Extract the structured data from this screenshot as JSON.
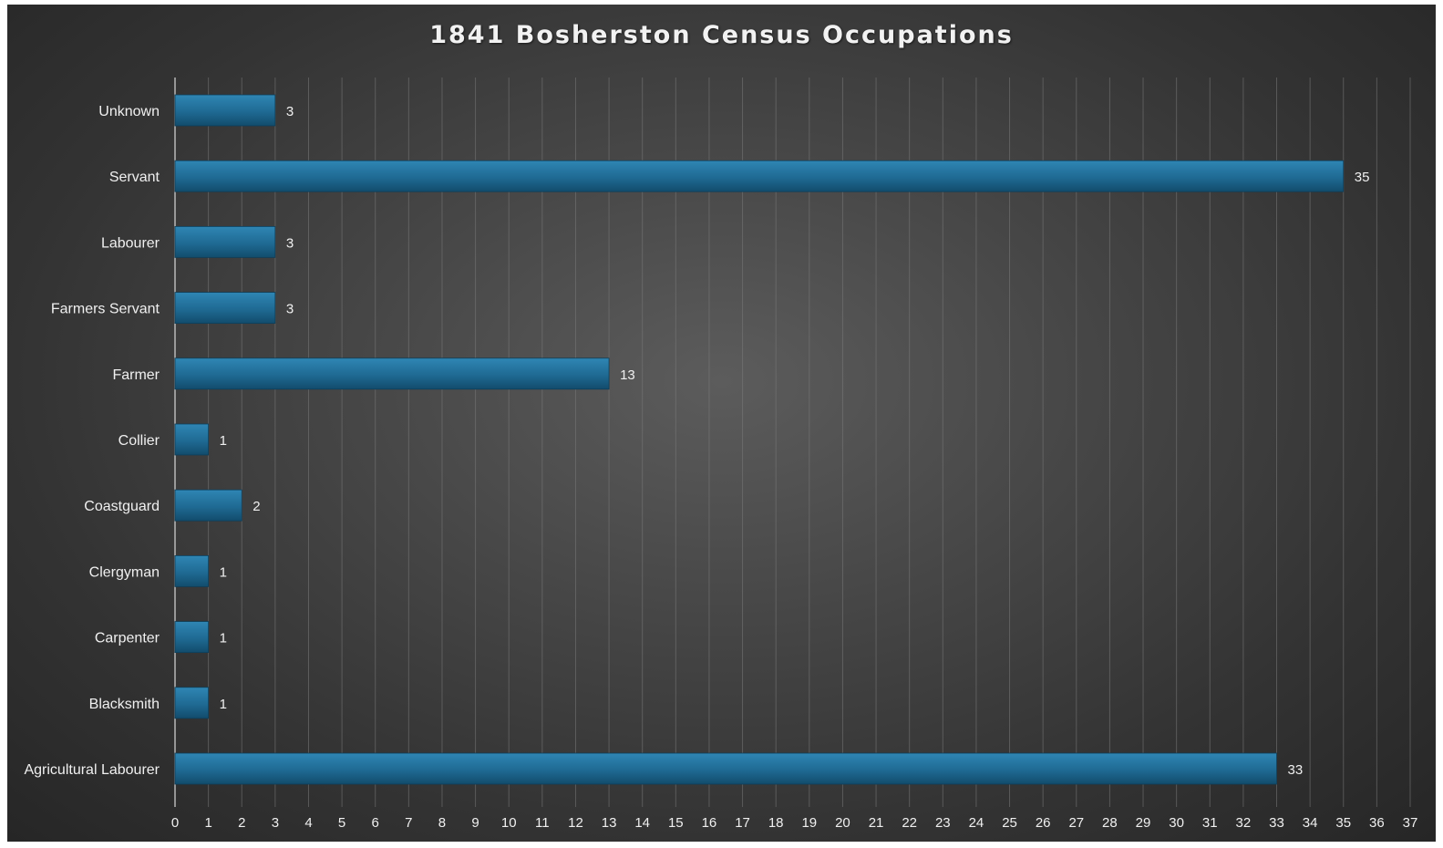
{
  "chart_data": {
    "type": "bar",
    "orientation": "horizontal",
    "title": "1841 Bosherston Census Occupations",
    "categories": [
      "Unknown",
      "Servant",
      "Labourer",
      "Farmers Servant",
      "Farmer",
      "Collier",
      "Coastguard",
      "Clergyman",
      "Carpenter",
      "Blacksmith",
      "Agricultural Labourer"
    ],
    "values": [
      3,
      35,
      3,
      3,
      13,
      1,
      2,
      1,
      1,
      1,
      33
    ],
    "xlim": [
      0,
      37
    ],
    "x_ticks": [
      "0",
      "1",
      "2",
      "3",
      "4",
      "5",
      "6",
      "7",
      "8",
      "9",
      "10",
      "11",
      "12",
      "13",
      "14",
      "15",
      "16",
      "17",
      "18",
      "19",
      "20",
      "21",
      "22",
      "23",
      "24",
      "25",
      "26",
      "27",
      "28",
      "29",
      "30",
      "31",
      "32",
      "33",
      "34",
      "35",
      "36",
      "37"
    ],
    "xlabel": "",
    "ylabel": "",
    "grid": true,
    "legend": "none",
    "data_labels": true,
    "colors": {
      "bar": "#1f6a93",
      "bar_light": "#2f86b4",
      "bar_dark": "#124c6c",
      "gridline": "#7a7a7a",
      "axis": "#d9d9d9",
      "text": "#f0f0f0"
    }
  }
}
